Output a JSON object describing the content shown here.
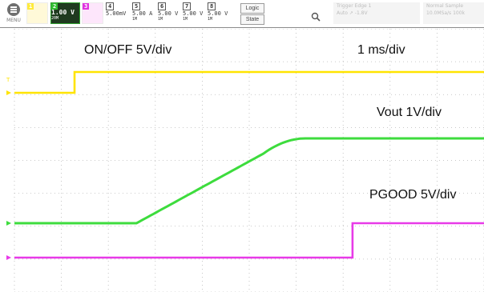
{
  "toolbar": {
    "menu_label": "MENU",
    "channels": [
      {
        "number": "1",
        "value": "",
        "sub": ""
      },
      {
        "number": "2",
        "value": "1.00 V",
        "sub": "20M"
      },
      {
        "number": "3",
        "value": "",
        "sub": ""
      },
      {
        "number": "4",
        "value": "5.00mV",
        "sub": ""
      },
      {
        "number": "5",
        "value": "5.00 A",
        "sub": "1M"
      },
      {
        "number": "6",
        "value": "5.00 V",
        "sub": "1M"
      },
      {
        "number": "7",
        "value": "5.00 V",
        "sub": "1M"
      },
      {
        "number": "8",
        "value": "5.00 V",
        "sub": "1M"
      }
    ],
    "logic_label": "Logic",
    "state_label": "State",
    "zoom_icon": "magnifier-icon"
  },
  "status": {
    "line1": "Trigger  Edge  1",
    "line2": "Auto  ↗  -1.8V",
    "line3": "Normal  Sample",
    "line4": "10.0MSa/s  100k"
  },
  "colors": {
    "ch1": "#ffe400",
    "ch2": "#3ddc3d",
    "ch3": "#e83ae8",
    "grid": "#b8b8b8"
  },
  "annotations": {
    "onoff": "ON/OFF 5V/div",
    "timebase": "1 ms/div",
    "vout": "Vout 1V/div",
    "pgood": "PGOOD 5V/div"
  },
  "traces": {
    "onoff_rise_fraction": 0.128,
    "vout_ramp_start_fraction": 0.26,
    "vout_ramp_end_fraction": 0.62,
    "pgood_rise_fraction": 0.72
  }
}
